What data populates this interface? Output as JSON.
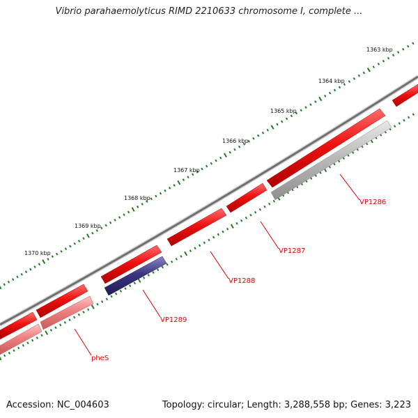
{
  "title": "Vibrio parahaemolyticus RIMD 2210633 chromosome I, complete ...",
  "accession": "Accession: NC_004603",
  "summary": "Topology: circular; Length: 3,288,558 bp; Genes: 3,223",
  "colors": {
    "backbone": "#777777",
    "tick": "#1f7a1f",
    "cds": "#ee1111",
    "gene_label": "#dd0000",
    "feature_blue": "#3b3580",
    "feature_pink": "#ee8080",
    "feature_grey": "#bbbbbb"
  },
  "scale_labels": [
    "1363 kbp",
    "1364 kbp",
    "1365 kbp",
    "1366 kbp",
    "1367 kbp",
    "1368 kbp",
    "1369 kbp",
    "1370 kbp"
  ],
  "gene_labels": [
    "VP1286",
    "VP1287",
    "VP1288",
    "VP1289",
    "pheS"
  ]
}
